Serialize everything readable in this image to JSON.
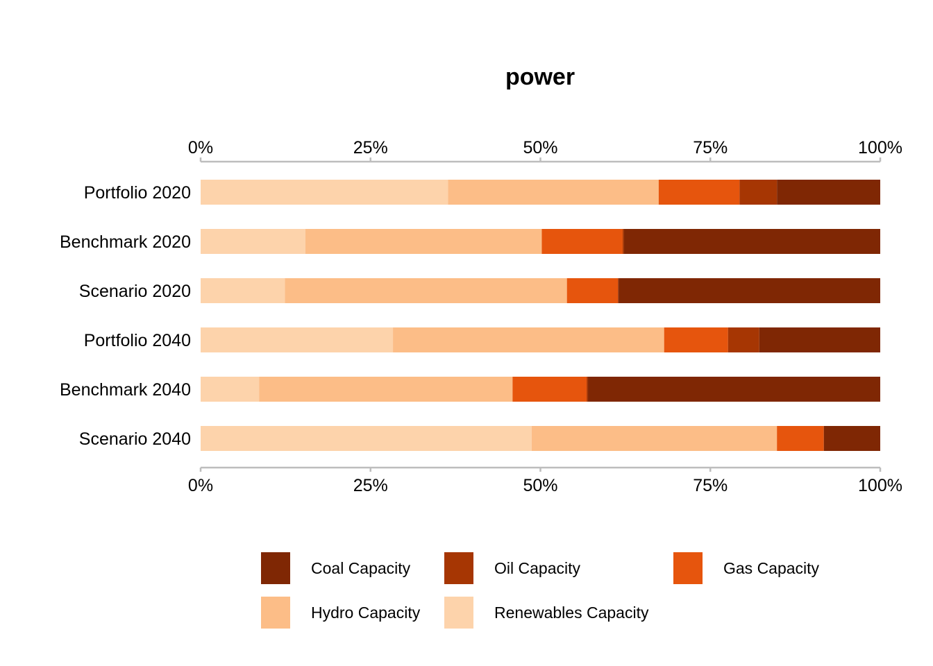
{
  "chart_data": {
    "type": "bar",
    "orientation": "horizontal",
    "stacked": true,
    "percent": true,
    "title": "power",
    "xlabel": "",
    "ylabel": "",
    "xlim": [
      0,
      100
    ],
    "xticks": [
      "0%",
      "25%",
      "50%",
      "75%",
      "100%"
    ],
    "grid": false,
    "legend_position": "bottom",
    "categories": [
      "Portfolio 2020",
      "Benchmark 2020",
      "Scenario 2020",
      "Portfolio 2040",
      "Benchmark 2040",
      "Scenario 2040"
    ],
    "series": [
      {
        "name": "Renewables Capacity",
        "color": "#fdd3ab",
        "values": [
          36.4,
          15.4,
          12.4,
          28.3,
          8.6,
          48.7
        ]
      },
      {
        "name": "Hydro Capacity",
        "color": "#fcbd87",
        "values": [
          31.0,
          34.8,
          41.5,
          39.9,
          37.3,
          36.1
        ]
      },
      {
        "name": "Gas Capacity",
        "color": "#e6550d",
        "values": [
          11.9,
          11.9,
          7.5,
          9.4,
          10.9,
          6.9
        ]
      },
      {
        "name": "Oil Capacity",
        "color": "#a63603",
        "values": [
          5.5,
          0.2,
          0.1,
          4.6,
          0.2,
          0.0
        ]
      },
      {
        "name": "Coal Capacity",
        "color": "#7f2704",
        "values": [
          15.2,
          37.7,
          38.5,
          17.8,
          43.0,
          8.3
        ]
      }
    ],
    "legend": [
      {
        "name": "Coal Capacity",
        "color": "#7f2704"
      },
      {
        "name": "Oil Capacity",
        "color": "#a63603"
      },
      {
        "name": "Gas Capacity",
        "color": "#e6550d"
      },
      {
        "name": "Hydro Capacity",
        "color": "#fcbd87"
      },
      {
        "name": "Renewables Capacity",
        "color": "#fdd3ab"
      }
    ]
  }
}
